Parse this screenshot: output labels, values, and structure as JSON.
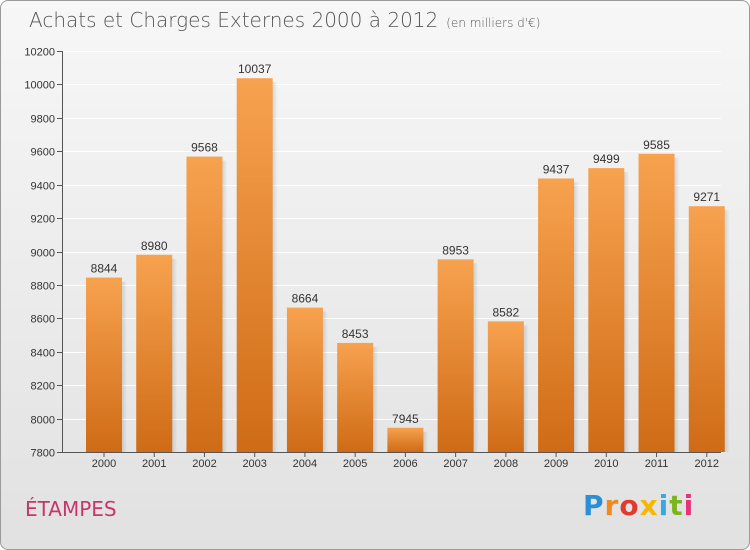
{
  "title": "Achats et Charges Externes 2000 à 2012",
  "subtitle": "(en milliers d'€)",
  "commune": "ÉTAMPES",
  "logo": {
    "letters": [
      "P",
      "r",
      "o",
      "x",
      "i",
      "t",
      "i"
    ],
    "colors": [
      "#2b8fd6",
      "#f08a1a",
      "#e23b2e",
      "#f5b800",
      "#3aa8e0",
      "#7ab51d",
      "#e2357a"
    ]
  },
  "colors": {
    "bar_top": "#f7a24f",
    "bar_bottom": "#cf6b16",
    "axis": "#555555",
    "grid": "#ffffff"
  },
  "chart_data": {
    "type": "bar",
    "categories": [
      "2000",
      "2001",
      "2002",
      "2003",
      "2004",
      "2005",
      "2006",
      "2007",
      "2008",
      "2009",
      "2010",
      "2011",
      "2012"
    ],
    "values": [
      8844,
      8980,
      9568,
      10037,
      8664,
      8453,
      7945,
      8953,
      8582,
      9437,
      9499,
      9585,
      9271
    ],
    "ylim": [
      7800,
      10200
    ],
    "yticks": [
      7800,
      8000,
      8200,
      8400,
      8600,
      8800,
      9000,
      9200,
      9400,
      9600,
      9800,
      10000,
      10200
    ],
    "grid": true,
    "data_labels": true
  }
}
